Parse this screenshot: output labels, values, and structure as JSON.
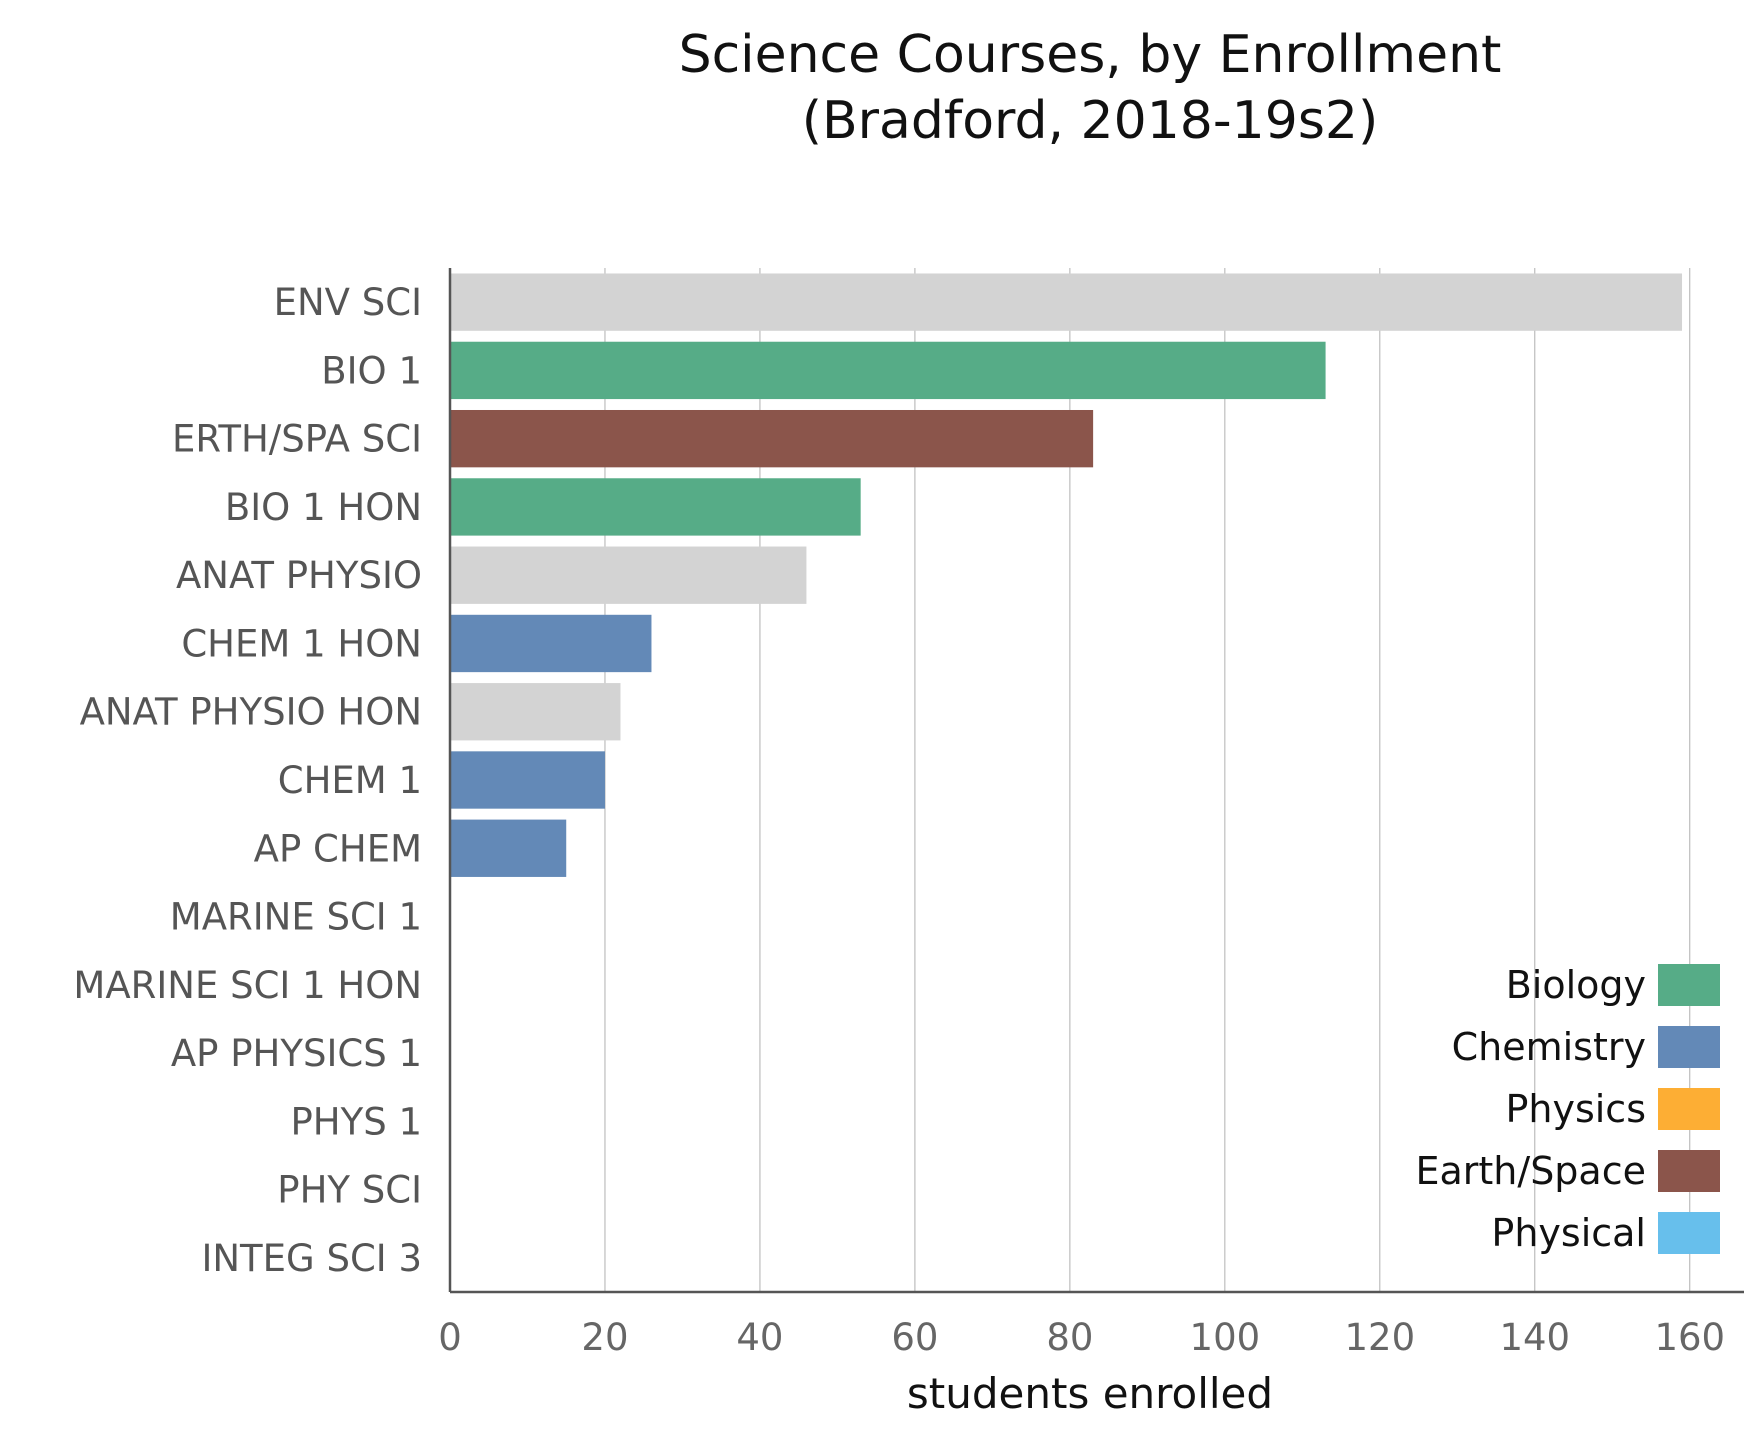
{
  "chart_data": {
    "type": "bar",
    "orientation": "horizontal",
    "title_line1": "Science Courses, by Enrollment",
    "title_line2": "(Bradford, 2018-19s2)",
    "xlabel": "students enrolled",
    "ylabel": "",
    "xlim": [
      0,
      167
    ],
    "xticks": [
      0,
      20,
      40,
      60,
      80,
      100,
      120,
      140,
      160
    ],
    "grid": "vertical",
    "legend_position": "bottom-right",
    "categories": [
      "ENV SCI",
      "BIO 1",
      "ERTH/SPA SCI",
      "BIO 1 HON",
      "ANAT PHYSIO",
      "CHEM 1 HON",
      "ANAT PHYSIO HON",
      "CHEM 1",
      "AP CHEM",
      "MARINE SCI 1",
      "MARINE SCI 1 HON",
      "AP PHYSICS 1",
      "PHYS 1",
      "PHY SCI",
      "INTEG SCI 3"
    ],
    "values": [
      159,
      113,
      83,
      53,
      46,
      26,
      22,
      20,
      15,
      0,
      0,
      0,
      0,
      0,
      0
    ],
    "bar_groups": [
      "Other",
      "Biology",
      "Earth/Space",
      "Biology",
      "Other",
      "Chemistry",
      "Other",
      "Chemistry",
      "Chemistry",
      "Biology",
      "Biology",
      "Physics",
      "Physics",
      "Physical",
      "Other"
    ],
    "legend": [
      {
        "name": "Biology",
        "color": "#56ac87"
      },
      {
        "name": "Chemistry",
        "color": "#6389b7"
      },
      {
        "name": "Physics",
        "color": "#fdae34"
      },
      {
        "name": "Earth/Space",
        "color": "#8b554b"
      },
      {
        "name": "Physical",
        "color": "#67bfec"
      }
    ],
    "other_color": "#d3d3d3"
  }
}
